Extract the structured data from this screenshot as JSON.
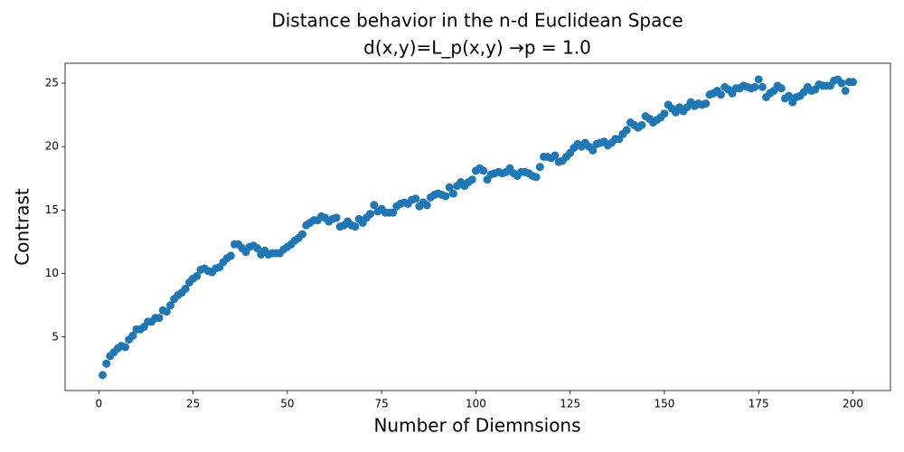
{
  "chart_data": {
    "type": "scatter",
    "title": "Distance behavior in the n-d Euclidean Space",
    "subtitle": "d(x,y)=L_p(x,y) →p =  1.0",
    "x_label": "Number of Diemnsions",
    "y_label": "Contrast",
    "xlim": [
      -8.95,
      209.95
    ],
    "ylim": [
      0.78,
      26.57
    ],
    "xticks": [
      0,
      25,
      50,
      75,
      100,
      125,
      150,
      175,
      200
    ],
    "yticks": [
      5,
      10,
      15,
      20,
      25
    ],
    "color": "#1f77b4",
    "x": [
      1,
      2,
      3,
      4,
      5,
      6,
      7,
      8,
      9,
      10,
      11,
      12,
      13,
      14,
      15,
      16,
      17,
      18,
      19,
      20,
      21,
      22,
      23,
      24,
      25,
      26,
      27,
      28,
      29,
      30,
      31,
      32,
      33,
      34,
      35,
      36,
      37,
      38,
      39,
      40,
      41,
      42,
      43,
      44,
      45,
      46,
      47,
      48,
      49,
      50,
      51,
      52,
      53,
      54,
      55,
      56,
      57,
      58,
      59,
      60,
      61,
      62,
      63,
      64,
      65,
      66,
      67,
      68,
      69,
      70,
      71,
      72,
      73,
      74,
      75,
      76,
      77,
      78,
      79,
      80,
      81,
      82,
      83,
      84,
      85,
      86,
      87,
      88,
      89,
      90,
      91,
      92,
      93,
      94,
      95,
      96,
      97,
      98,
      99,
      100,
      101,
      102,
      103,
      104,
      105,
      106,
      107,
      108,
      109,
      110,
      111,
      112,
      113,
      114,
      115,
      116,
      117,
      118,
      119,
      120,
      121,
      122,
      123,
      124,
      125,
      126,
      127,
      128,
      129,
      130,
      131,
      132,
      133,
      134,
      135,
      136,
      137,
      138,
      139,
      140,
      141,
      142,
      143,
      144,
      145,
      146,
      147,
      148,
      149,
      150,
      151,
      152,
      153,
      154,
      155,
      156,
      157,
      158,
      159,
      160,
      161,
      162,
      163,
      164,
      165,
      166,
      167,
      168,
      169,
      170,
      171,
      172,
      173,
      174,
      175,
      176,
      177,
      178,
      179,
      180,
      181,
      182,
      183,
      184,
      185,
      186,
      187,
      188,
      189,
      190,
      191,
      192,
      193,
      194,
      195,
      196,
      197,
      198,
      199,
      200
    ],
    "values": [
      2.0,
      2.9,
      3.5,
      3.8,
      4.1,
      4.3,
      4.2,
      4.8,
      5.1,
      5.6,
      5.6,
      5.8,
      6.2,
      6.2,
      6.5,
      6.5,
      7.1,
      7.0,
      7.5,
      8.0,
      8.3,
      8.5,
      8.8,
      9.3,
      9.6,
      9.8,
      10.3,
      10.4,
      10.2,
      10.1,
      10.4,
      10.5,
      10.9,
      11.2,
      11.4,
      12.3,
      12.3,
      12.0,
      11.7,
      12.1,
      12.2,
      12.0,
      11.5,
      11.8,
      11.5,
      11.6,
      11.6,
      11.6,
      11.9,
      12.1,
      12.3,
      12.6,
      12.8,
      13.1,
      13.8,
      14.0,
      14.2,
      14.2,
      14.5,
      14.4,
      14.1,
      14.3,
      14.4,
      13.7,
      13.8,
      14.1,
      13.8,
      13.7,
      14.3,
      14.0,
      14.4,
      14.7,
      15.4,
      14.9,
      15.1,
      14.8,
      14.8,
      14.8,
      15.3,
      15.5,
      15.6,
      15.5,
      15.8,
      15.9,
      15.3,
      15.6,
      15.4,
      16.0,
      16.2,
      16.3,
      16.2,
      16.1,
      16.8,
      16.3,
      16.9,
      17.2,
      16.9,
      17.2,
      17.4,
      18.1,
      18.3,
      18.1,
      17.4,
      17.8,
      17.9,
      18.0,
      17.9,
      18.0,
      18.3,
      17.9,
      17.7,
      18.0,
      18.0,
      17.9,
      17.7,
      17.6,
      18.4,
      19.2,
      19.2,
      19.1,
      19.3,
      18.8,
      18.9,
      19.2,
      19.5,
      19.9,
      20.2,
      20.0,
      20.3,
      20.0,
      19.7,
      20.2,
      20.3,
      20.4,
      20.1,
      20.3,
      20.6,
      20.6,
      21.0,
      21.3,
      21.9,
      21.7,
      21.5,
      21.7,
      22.4,
      22.2,
      21.9,
      22.1,
      22.3,
      22.6,
      23.3,
      23.0,
      22.7,
      23.1,
      22.8,
      23.1,
      23.5,
      23.2,
      23.4,
      23.3,
      23.4,
      24.1,
      24.2,
      24.4,
      24.1,
      24.7,
      24.5,
      24.2,
      24.6,
      24.6,
      24.8,
      24.7,
      24.6,
      24.7,
      25.3,
      24.7,
      23.9,
      24.2,
      24.4,
      24.8,
      24.6,
      23.8,
      24.0,
      23.5,
      23.9,
      24.0,
      24.3,
      24.7,
      24.4,
      24.5,
      24.9,
      24.8,
      24.8,
      24.8,
      25.2,
      25.3,
      25.0,
      24.4,
      25.1,
      25.1
    ]
  }
}
